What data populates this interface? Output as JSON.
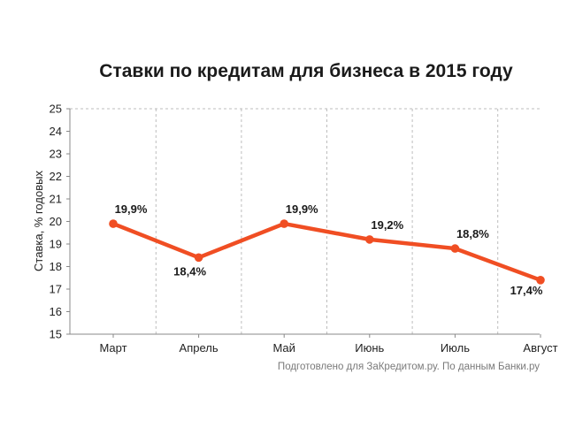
{
  "chart_data": {
    "type": "line",
    "title": "Ставки по кредитам для бизнеса в 2015 году",
    "ylabel": "Ставка, % годовых",
    "xlabel": "",
    "ylim": [
      15,
      25
    ],
    "yticks": [
      "15",
      "16",
      "17",
      "18",
      "19",
      "20",
      "21",
      "22",
      "23",
      "24",
      "25"
    ],
    "categories": [
      "Март",
      "Апрель",
      "Май",
      "Июнь",
      "Июль",
      "Август"
    ],
    "values": [
      19.9,
      18.4,
      19.9,
      19.2,
      18.8,
      17.4
    ],
    "data_labels": [
      "19,9%",
      "18,4%",
      "19,9%",
      "19,2%",
      "18,8%",
      "17,4%"
    ],
    "grid": "vertical dashed",
    "legend": "none",
    "line_color": "#f04e23",
    "source": "Подготовлено для ЗаКредитом.ру. По данным Банки.ру"
  }
}
